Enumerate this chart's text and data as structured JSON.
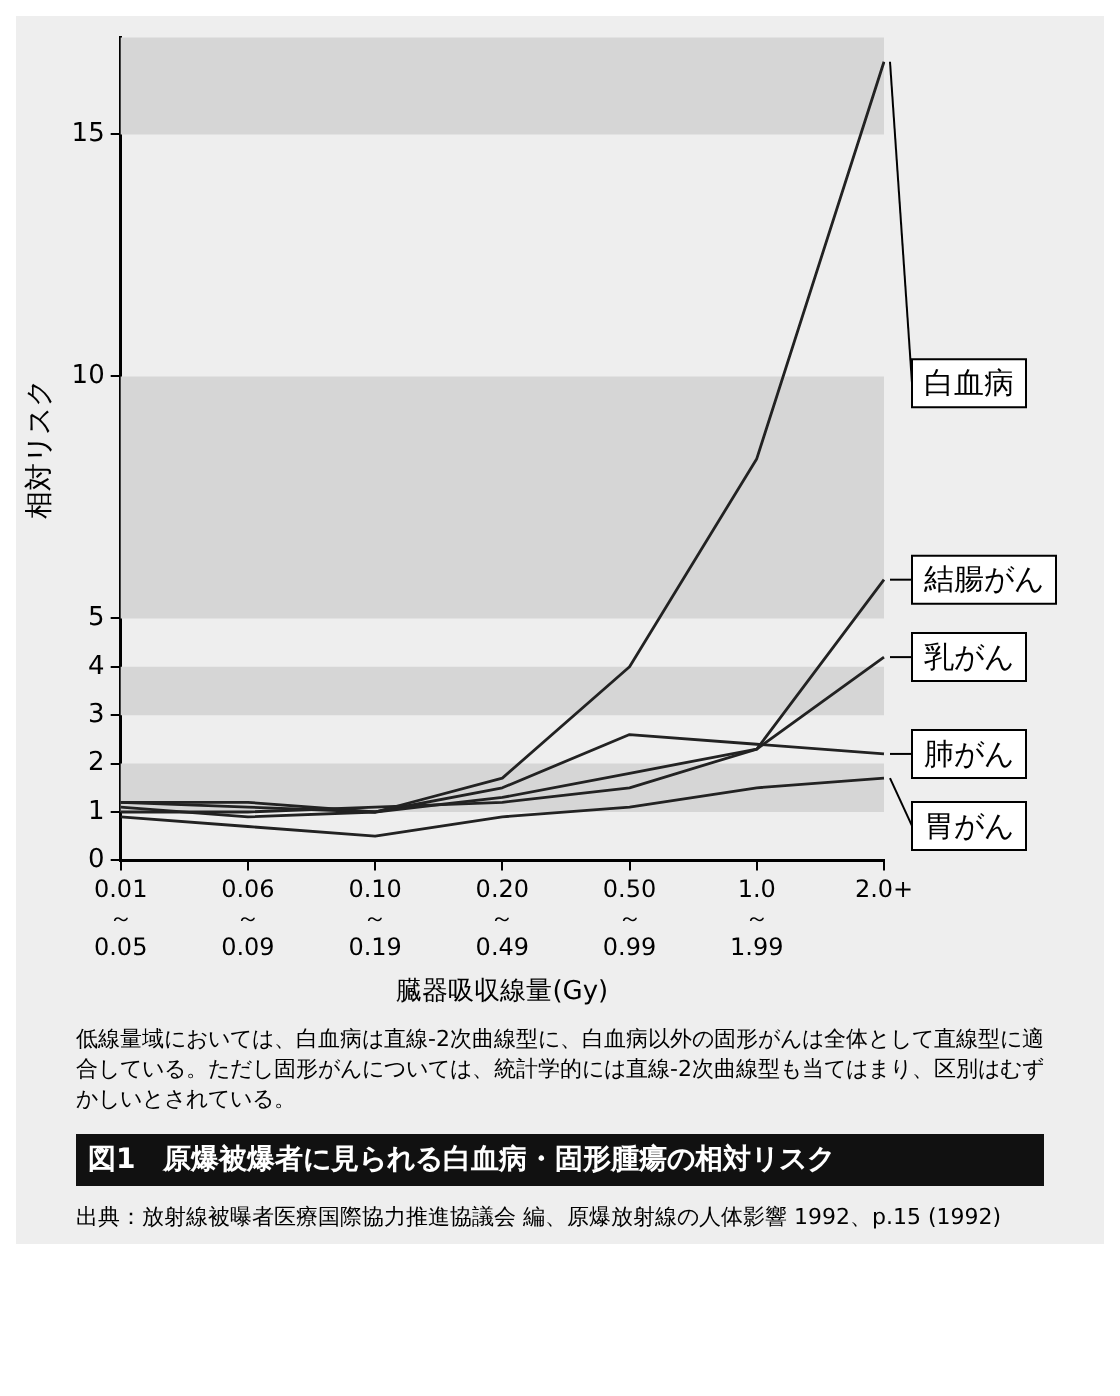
{
  "chart_data": {
    "type": "line",
    "title": "図1　原爆被爆者に見られる白血病・固形腫瘍の相対リスク",
    "xlabel": "臓器吸収線量(Gy)",
    "ylabel": "相対リスク",
    "categories": [
      "0.01\n～\n0.05",
      "0.06\n～\n0.09",
      "0.10\n～\n0.19",
      "0.20\n～\n0.49",
      "0.50\n～\n0.99",
      "1.0\n～\n1.99",
      "2.0+"
    ],
    "series": [
      {
        "name": "白血病",
        "color": "#222222",
        "values": [
          1.1,
          0.9,
          1.0,
          1.7,
          4.0,
          8.3,
          16.5
        ]
      },
      {
        "name": "結腸がん",
        "color": "#222222",
        "values": [
          1.0,
          1.0,
          1.1,
          1.2,
          1.5,
          2.3,
          5.8
        ]
      },
      {
        "name": "乳がん",
        "color": "#222222",
        "values": [
          1.2,
          1.2,
          1.0,
          1.3,
          1.8,
          2.3,
          4.2
        ]
      },
      {
        "name": "肺がん",
        "color": "#222222",
        "values": [
          1.2,
          1.1,
          1.0,
          1.5,
          2.6,
          2.4,
          2.2
        ]
      },
      {
        "name": "胃がん",
        "color": "#222222",
        "values": [
          0.9,
          0.7,
          0.5,
          0.9,
          1.1,
          1.5,
          1.7
        ]
      }
    ],
    "ylim": [
      0,
      17
    ],
    "yticks": [
      0,
      1,
      2,
      3,
      4,
      5,
      10,
      15
    ],
    "legend": false,
    "marker": "none",
    "line_style": "solid",
    "bands": [
      {
        "axis": "y",
        "from": 1,
        "to": 2,
        "color": "#d6d6d6"
      },
      {
        "axis": "y",
        "from": 3,
        "to": 4,
        "color": "#d6d6d6"
      },
      {
        "axis": "y",
        "from": 5,
        "to": 10,
        "color": "#d6d6d6"
      },
      {
        "axis": "y",
        "from": 15,
        "to": 17,
        "color": "#d6d6d6"
      }
    ],
    "annotations": [
      "低線量域においては、白血病は直線-2次曲線型に、白血病以外の固形がんは全体として直線型に適合している。ただし固形がんについては、統計学的には直線-2次曲線型も当てはまり、区別はむずかしいとされている。",
      "出典：放射線被曝者医療国際協力推進協議会 編、原爆放射線の人体影響 1992、p.15 (1992)"
    ]
  }
}
